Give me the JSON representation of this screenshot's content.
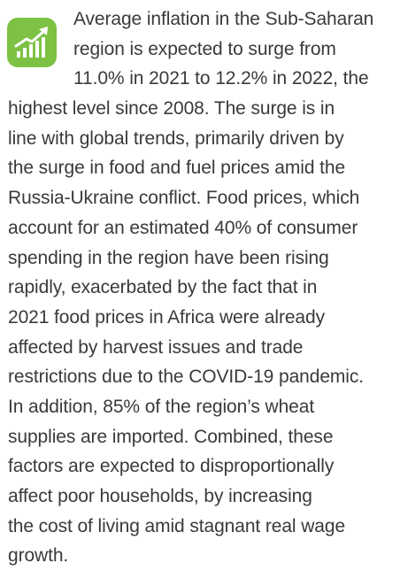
{
  "paragraph": {
    "lines": [
      "Average inflation in the Sub-Saharan",
      "region is expected to surge from",
      "11.0% in 2021 to 12.2% in 2022, the",
      "highest level since 2008. The surge is in",
      "line with global trends, primarily driven by",
      "the surge in food and fuel prices amid the",
      "Russia-Ukraine conflict. Food prices, which",
      "account for an estimated 40% of consumer",
      "spending in the region have been rising",
      "rapidly, exacerbated by the fact that in",
      "2021 food prices in Africa were already",
      "affected by harvest issues and trade",
      "restrictions due to the COVID-19 pandemic.",
      "In addition, 85% of the region’s wheat",
      "supplies are imported. Combined, these",
      "factors are expected to disproportionally",
      "affect poor households, by increasing",
      "the cost of living amid stagnant real wage",
      "growth."
    ]
  }
}
